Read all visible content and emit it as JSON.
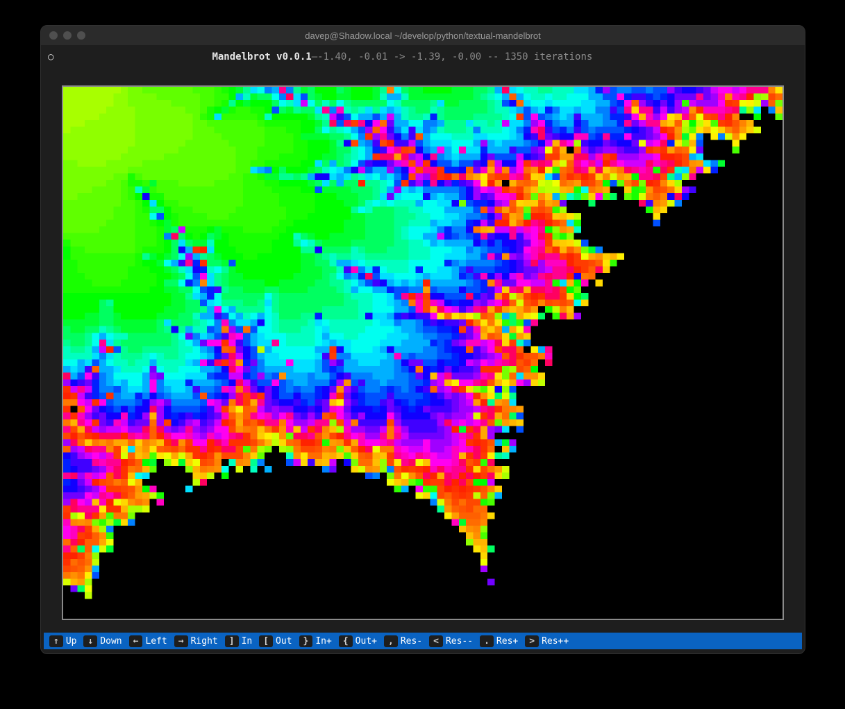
{
  "window": {
    "title": "davep@Shadow.local ~/develop/python/textual-mandelbrot",
    "traffic_color": "#4f4f4f"
  },
  "header": {
    "icon": "○",
    "app_name": "Mandelbrot v0.0.1",
    "separator": " — ",
    "status": "-1.40, -0.01 -> -1.39, -0.00 -- 1350 iterations"
  },
  "mandelbrot": {
    "x_min": -1.4,
    "y_min": -0.01,
    "x_max": -1.39,
    "y_max": -0.0,
    "iterations": 1350,
    "grid_cols": 100,
    "grid_rows": 80,
    "inside_color": "#000000",
    "palette": [
      "#ff2200",
      "#ff3000",
      "#ff3c00",
      "#ff4800",
      "#ff5400",
      "#ff6000",
      "#ff6c00",
      "#ff7800",
      "#ff8400",
      "#ff9000",
      "#ff9c00",
      "#ffa800",
      "#ffb400",
      "#ffc000",
      "#ffcc00",
      "#ffd800",
      "#ffe400",
      "#fff000",
      "#f0ff00",
      "#d8ff00",
      "#c0ff00",
      "#a8ff00",
      "#90ff00",
      "#78ff00",
      "#60ff00",
      "#48ff00",
      "#30ff00",
      "#18ff00",
      "#00ff00",
      "#00ff30",
      "#00ff60",
      "#00ff90",
      "#00ffc0",
      "#00fff0",
      "#00e0ff",
      "#00b0ff",
      "#0080ff",
      "#0050ff",
      "#0020ff",
      "#1000ff",
      "#4000ff",
      "#7000ff",
      "#a000ff",
      "#d000ff",
      "#ff00f0",
      "#ff00c0",
      "#ff0090",
      "#ff0060"
    ],
    "border_color": "#8a8a8a",
    "background_color": "#000000"
  },
  "footer": {
    "bg": "#0a63c2",
    "items": [
      {
        "key": "↑",
        "label": "Up"
      },
      {
        "key": "↓",
        "label": "Down"
      },
      {
        "key": "←",
        "label": "Left"
      },
      {
        "key": "→",
        "label": "Right"
      },
      {
        "key": "]",
        "label": "In"
      },
      {
        "key": "[",
        "label": "Out"
      },
      {
        "key": "}",
        "label": "In+"
      },
      {
        "key": "{",
        "label": "Out+"
      },
      {
        "key": ",",
        "label": "Res-"
      },
      {
        "key": "<",
        "label": "Res--"
      },
      {
        "key": ".",
        "label": "Res+"
      },
      {
        "key": ">",
        "label": "Res++"
      }
    ]
  }
}
